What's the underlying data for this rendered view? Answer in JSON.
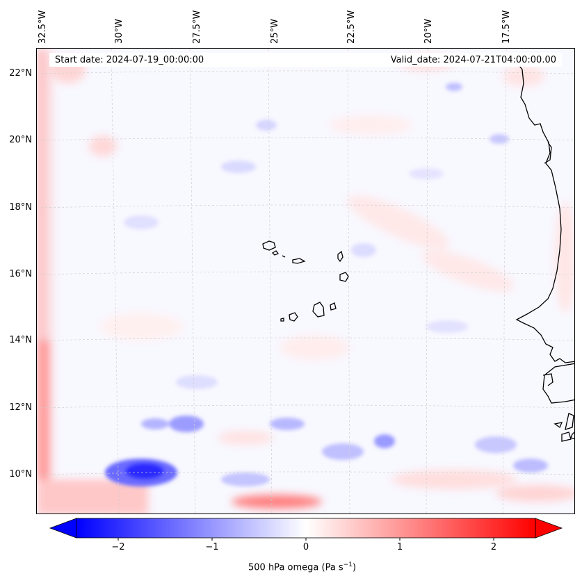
{
  "map": {
    "lon_labels": [
      "32.5°W",
      "30°W",
      "27.5°W",
      "25°W",
      "22.5°W",
      "20°W",
      "17.5°W"
    ],
    "lat_labels": [
      "22°N",
      "20°N",
      "18°N",
      "16°N",
      "14°N",
      "12°N",
      "10°N"
    ],
    "start_date": "Start date: 2024-07-19_00:00:00",
    "valid_date": "Valid_date: 2024-07-21T04:00:00.00",
    "field": "500 hPa omega"
  },
  "colorbar": {
    "label_main": "500 hPa omega (Pa s",
    "label_exp": "−1",
    "label_close": ")",
    "ticks": [
      "−2",
      "−1",
      "0",
      "1",
      "2"
    ],
    "vmin": -2.75,
    "vmax": 2.75,
    "colormap": [
      "#0000ff",
      "#ffffff",
      "#ff0000"
    ]
  }
}
